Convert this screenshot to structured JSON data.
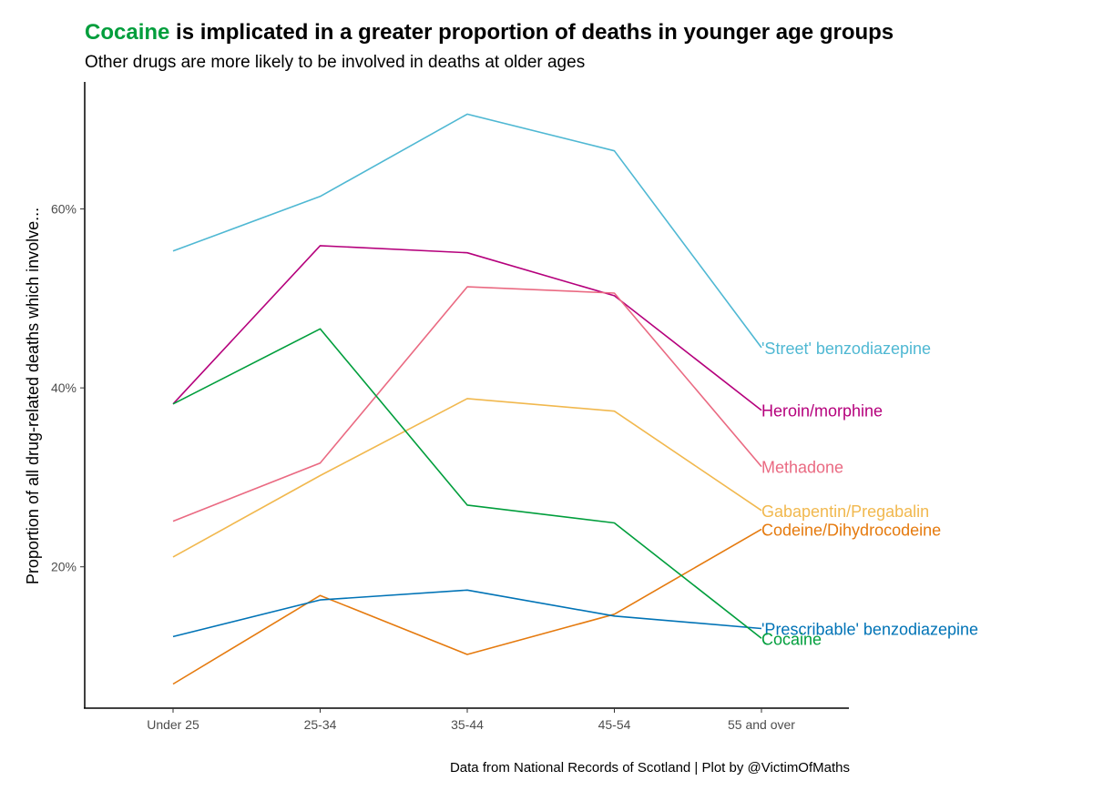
{
  "title": {
    "highlight": "Cocaine",
    "highlight_color": "#009E3C",
    "rest": " is implicated in a greater proportion of deaths in younger age groups"
  },
  "subtitle": "Other drugs are more likely to be involved in deaths at older ages",
  "caption": "Data from National Records of Scotland | Plot by @VictimOfMaths",
  "chart_data": {
    "type": "line",
    "categories": [
      "Under 25",
      "25-34",
      "35-44",
      "45-54",
      "55 and over"
    ],
    "ylabel": "Proportion of all drug-related deaths which involve...",
    "ylim": [
      4.2,
      74.2
    ],
    "yticks": [
      20,
      40,
      60
    ],
    "ytick_labels": [
      "20%",
      "40%",
      "60%"
    ],
    "grid": false,
    "legend": "direct labels at line ends",
    "series": [
      {
        "name": "'Street' benzodiazepine",
        "color": "#4FB8D3",
        "values": [
          55.3,
          61.4,
          70.6,
          66.5,
          44.5
        ]
      },
      {
        "name": "Heroin/morphine",
        "color": "#B5007C",
        "values": [
          38.2,
          55.9,
          55.1,
          50.3,
          37.5
        ]
      },
      {
        "name": "Methadone",
        "color": "#EA6A82",
        "values": [
          25.1,
          31.6,
          51.3,
          50.6,
          31.2
        ]
      },
      {
        "name": "Gabapentin/Pregabalin",
        "color": "#F1B84E",
        "values": [
          21.1,
          30.2,
          38.8,
          37.4,
          26.3
        ]
      },
      {
        "name": "Codeine/Dihydrocodeine",
        "color": "#E57A0E",
        "values": [
          6.9,
          16.8,
          10.2,
          14.7,
          24.2
        ]
      },
      {
        "name": "'Prescribable' benzodiazepine",
        "color": "#0073B6",
        "values": [
          12.2,
          16.3,
          17.4,
          14.5,
          13.1
        ]
      },
      {
        "name": "Cocaine",
        "color": "#009E3C",
        "values": [
          38.2,
          46.6,
          26.9,
          24.9,
          12.0
        ]
      }
    ]
  }
}
